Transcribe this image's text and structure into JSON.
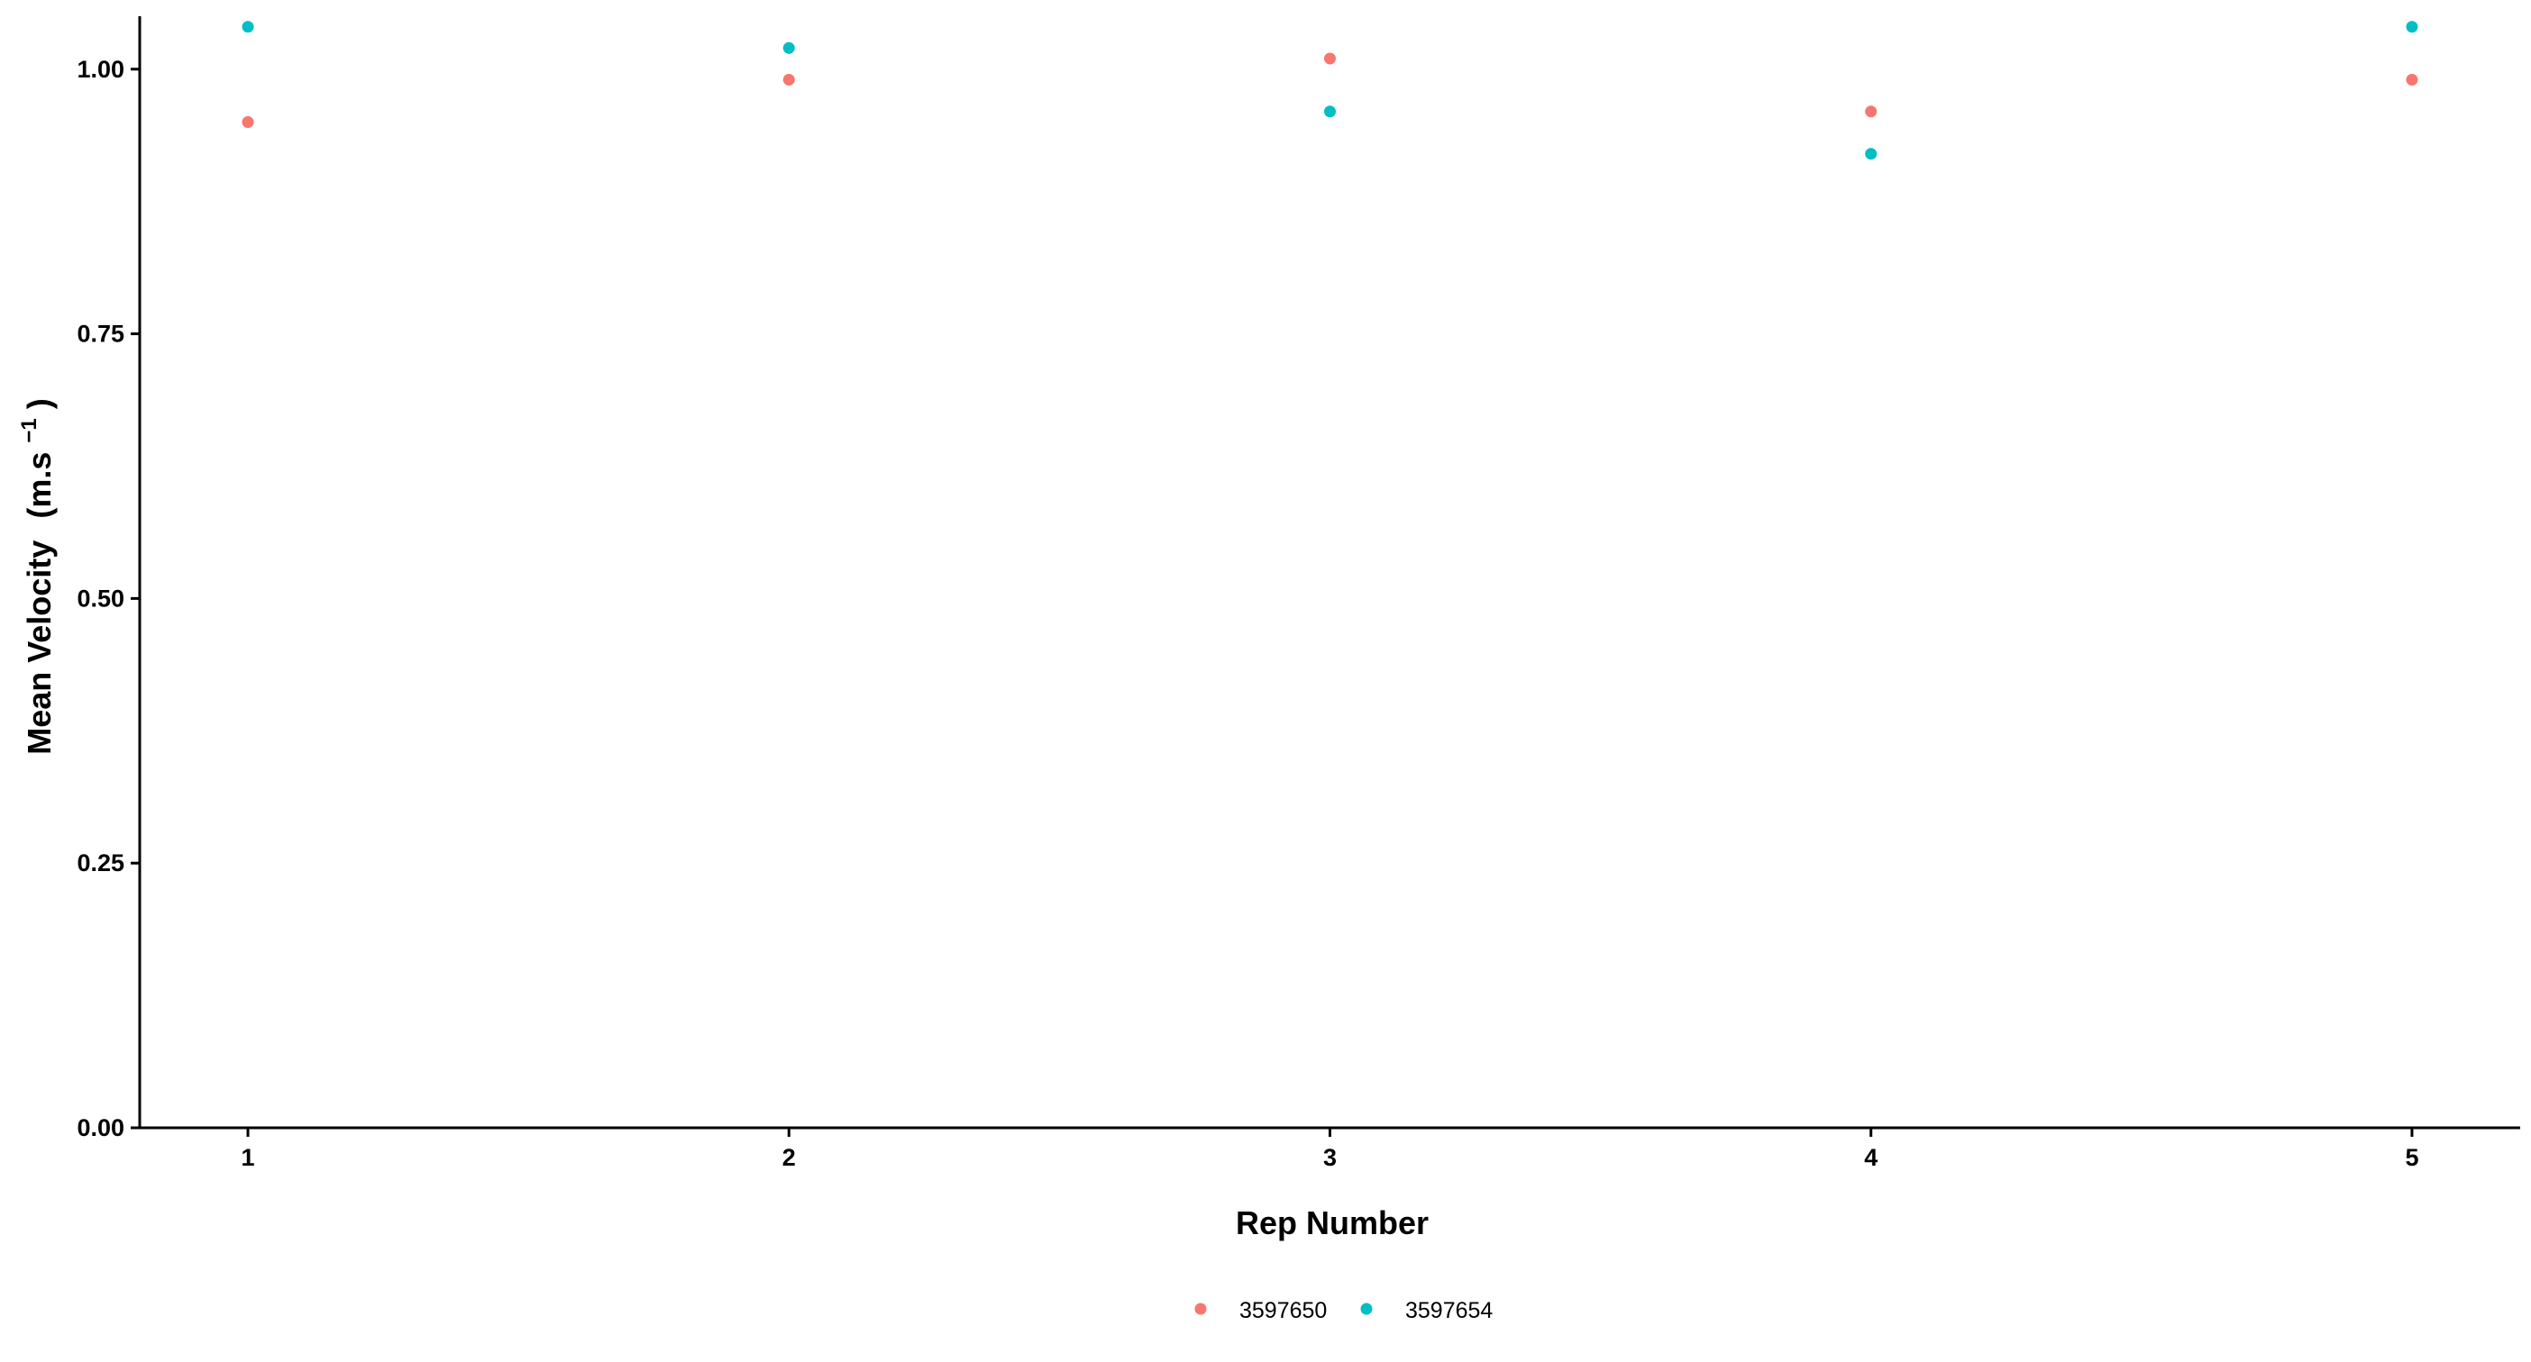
{
  "colors": {
    "series_1": "#F8766D",
    "series_2": "#00BFC4",
    "axis": "#000000",
    "background": "#FFFFFF"
  },
  "chart_data": {
    "type": "scatter",
    "title": "",
    "xlabel": "Rep Number",
    "ylabel_main": "Mean Velocity",
    "ylabel_unit": "(m.s",
    "ylabel_exp": "−1",
    "ylabel_close": ")",
    "x_ticks": [
      "1",
      "2",
      "3",
      "4",
      "5"
    ],
    "y_ticks": [
      "0.00",
      "0.25",
      "0.50",
      "0.75",
      "1.00"
    ],
    "xlim": [
      0.8,
      5.2
    ],
    "ylim": [
      0,
      1.05
    ],
    "grid": false,
    "legend_position": "bottom",
    "series": [
      {
        "name": "3597650",
        "color": "#F8766D",
        "x": [
          1,
          2,
          3,
          4,
          5
        ],
        "y": [
          0.95,
          0.99,
          1.01,
          0.96,
          0.99
        ]
      },
      {
        "name": "3597654",
        "color": "#00BFC4",
        "x": [
          1,
          2,
          3,
          4,
          5
        ],
        "y": [
          1.04,
          1.02,
          0.96,
          0.92,
          1.04
        ]
      }
    ]
  }
}
